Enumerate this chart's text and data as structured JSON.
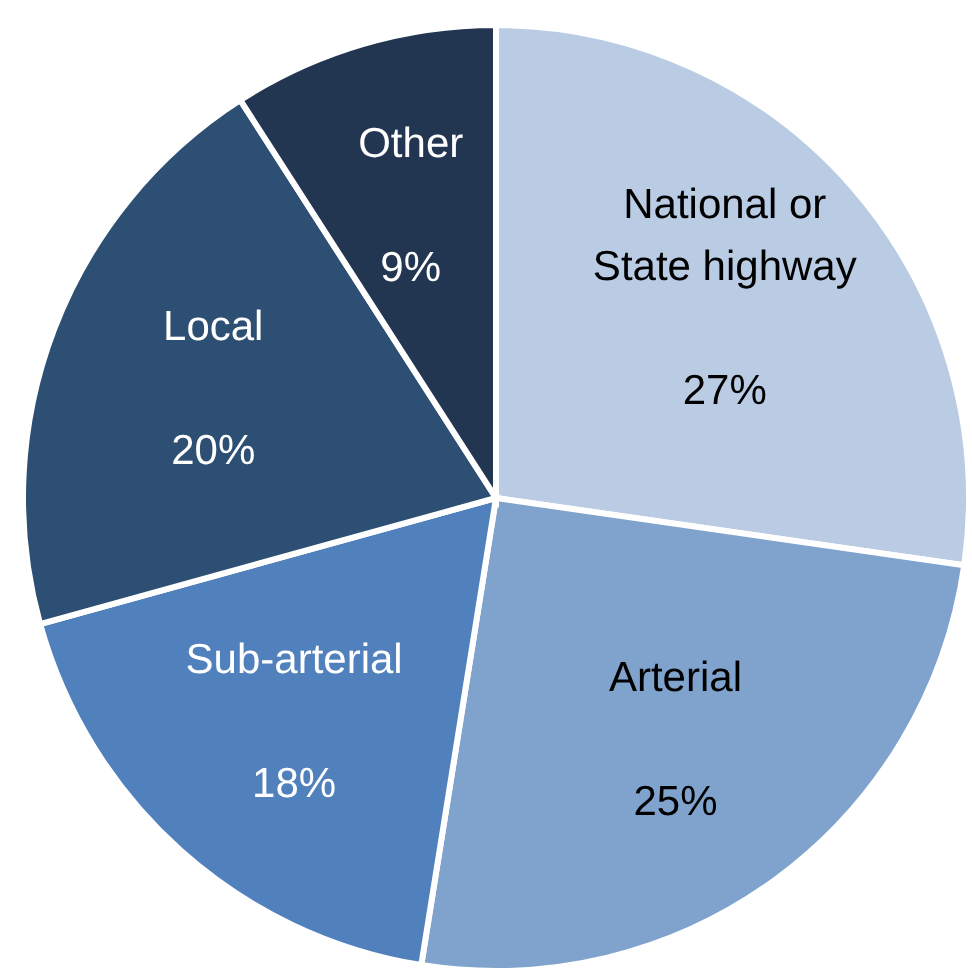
{
  "chart_data": {
    "type": "pie",
    "categories": [
      "National or State highway",
      "Arterial",
      "Sub-arterial",
      "Local",
      "Other"
    ],
    "values": [
      27,
      25,
      18,
      20,
      9
    ],
    "colors": [
      "#b9cce4",
      "#7fa3cd",
      "#5081bd",
      "#2d4f73",
      "#223651"
    ],
    "value_labels": [
      "27%",
      "25%",
      "18%",
      "20%",
      "9%"
    ],
    "legend": false
  }
}
